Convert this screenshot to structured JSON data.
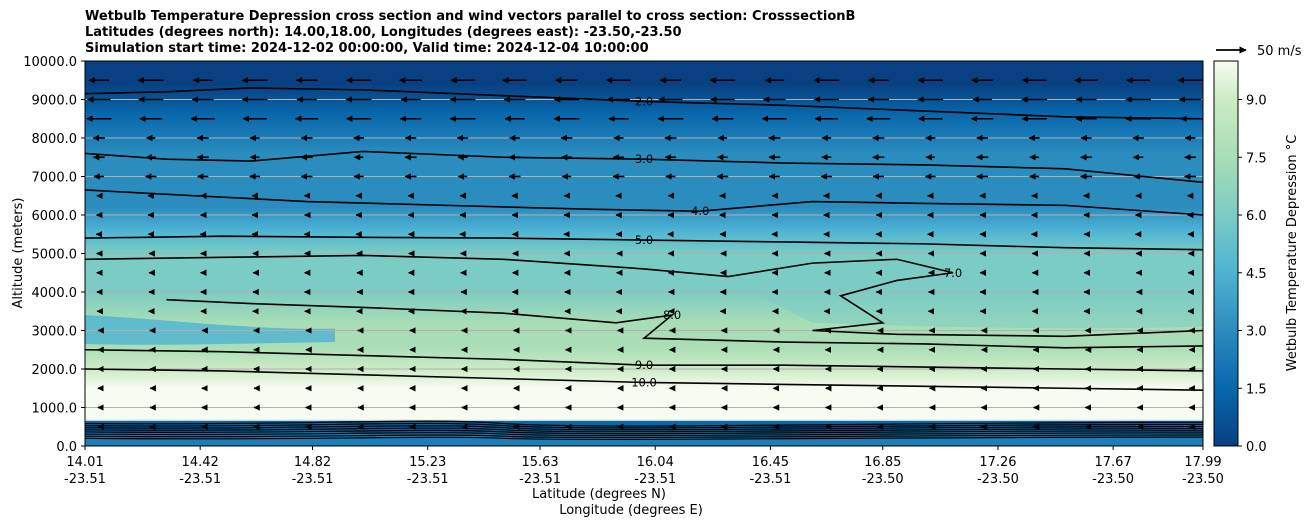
{
  "chart_data": {
    "type": "heatmap",
    "title_lines": [
      "Wetbulb Temperature Depression cross section and wind vectors parallel to cross section: CrosssectionB",
      "Latitudes (degrees north): 14.00,18.00, Longitudes (degrees east): -23.50,-23.50",
      "Simulation start time: 2024-12-02 00:00:00, Valid time: 2024-12-04 10:00:00"
    ],
    "ylabel": "Altitude (meters)",
    "xlabel_lat": "Latitude (degrees N)",
    "xlabel_lon": "Longitude (degrees E)",
    "ylim": [
      0,
      10000
    ],
    "yticks": [
      "0.0",
      "1000.0",
      "2000.0",
      "3000.0",
      "4000.0",
      "5000.0",
      "6000.0",
      "7000.0",
      "8000.0",
      "9000.0",
      "10000.0"
    ],
    "ytick_values": [
      0,
      1000,
      2000,
      3000,
      4000,
      5000,
      6000,
      7000,
      8000,
      9000,
      10000
    ],
    "xlim": [
      14.01,
      17.99
    ],
    "xticks_lat": [
      "14.01",
      "14.42",
      "14.82",
      "15.23",
      "15.63",
      "16.04",
      "16.45",
      "16.85",
      "17.26",
      "17.67",
      "17.99"
    ],
    "xticks_lon": [
      "-23.51",
      "-23.51",
      "-23.51",
      "-23.51",
      "-23.51",
      "-23.51",
      "-23.51",
      "-23.50",
      "-23.50",
      "-23.50",
      "-23.50"
    ],
    "xtick_values": [
      14.01,
      14.42,
      14.82,
      15.23,
      15.63,
      16.04,
      16.45,
      16.85,
      17.26,
      17.67,
      17.99
    ],
    "colorbar": {
      "label": "Wetbulb Temperature Depression °C",
      "range": [
        0,
        10
      ],
      "ticks": [
        "0.0",
        "1.5",
        "3.0",
        "4.5",
        "6.0",
        "7.5",
        "9.0"
      ],
      "tick_values": [
        0,
        1.5,
        3.0,
        4.5,
        6.0,
        7.5,
        9.0
      ],
      "colormap": "GnBu_r"
    },
    "quiver_key": "50 m/s",
    "contour_lines": [
      {
        "level": 2.0,
        "label": "2.0",
        "points": [
          [
            14.01,
            9150
          ],
          [
            14.3,
            9200
          ],
          [
            14.6,
            9300
          ],
          [
            15.0,
            9250
          ],
          [
            15.5,
            9100
          ],
          [
            16.0,
            8950
          ],
          [
            16.5,
            8850
          ],
          [
            17.0,
            8700
          ],
          [
            17.5,
            8550
          ],
          [
            17.99,
            8500
          ]
        ]
      },
      {
        "level": 3.0,
        "label": "3.0",
        "points": [
          [
            14.01,
            7600
          ],
          [
            14.3,
            7450
          ],
          [
            14.6,
            7400
          ],
          [
            15.0,
            7650
          ],
          [
            15.5,
            7500
          ],
          [
            16.0,
            7450
          ],
          [
            16.5,
            7350
          ],
          [
            17.0,
            7300
          ],
          [
            17.5,
            7200
          ],
          [
            17.99,
            6850
          ]
        ]
      },
      {
        "level": 4.0,
        "label": "4.0",
        "points": [
          [
            14.01,
            6650
          ],
          [
            14.4,
            6500
          ],
          [
            14.8,
            6350
          ],
          [
            15.3,
            6250
          ],
          [
            15.8,
            6150
          ],
          [
            16.2,
            6100
          ],
          [
            16.6,
            6350
          ],
          [
            17.0,
            6300
          ],
          [
            17.5,
            6250
          ],
          [
            17.99,
            6000
          ]
        ]
      },
      {
        "level": 5.0,
        "label": "5.0",
        "points": [
          [
            14.01,
            5400
          ],
          [
            14.5,
            5450
          ],
          [
            15.0,
            5420
          ],
          [
            15.5,
            5400
          ],
          [
            16.0,
            5350
          ],
          [
            16.5,
            5300
          ],
          [
            17.0,
            5250
          ],
          [
            17.5,
            5150
          ],
          [
            17.99,
            5100
          ]
        ]
      },
      {
        "level": 7.0,
        "label": "7.0",
        "points": [
          [
            14.01,
            4850
          ],
          [
            14.5,
            4900
          ],
          [
            15.0,
            4950
          ],
          [
            15.5,
            4850
          ],
          [
            16.0,
            4600
          ],
          [
            16.3,
            4400
          ],
          [
            16.6,
            4750
          ],
          [
            16.9,
            4850
          ],
          [
            17.1,
            4500
          ],
          [
            16.9,
            4300
          ],
          [
            16.7,
            3900
          ],
          [
            16.85,
            3200
          ],
          [
            16.6,
            3000
          ],
          [
            16.9,
            2900
          ],
          [
            17.5,
            2850
          ],
          [
            17.99,
            3000
          ]
        ]
      },
      {
        "level": 8.0,
        "label": "8.0",
        "points": [
          [
            14.3,
            3800
          ],
          [
            14.6,
            3700
          ],
          [
            15.0,
            3600
          ],
          [
            15.5,
            3450
          ],
          [
            15.9,
            3200
          ],
          [
            16.1,
            3400
          ],
          [
            16.0,
            2800
          ],
          [
            16.5,
            2700
          ],
          [
            17.0,
            2650
          ],
          [
            17.5,
            2550
          ],
          [
            17.99,
            2600
          ]
        ]
      },
      {
        "level": 9.0,
        "label": "9.0",
        "points": [
          [
            14.01,
            2500
          ],
          [
            14.5,
            2450
          ],
          [
            15.0,
            2350
          ],
          [
            15.5,
            2250
          ],
          [
            16.0,
            2100
          ],
          [
            16.5,
            2100
          ],
          [
            17.0,
            2050
          ],
          [
            17.5,
            2000
          ],
          [
            17.99,
            1950
          ]
        ]
      },
      {
        "level": 10.0,
        "label": "10.0",
        "points": [
          [
            14.01,
            2000
          ],
          [
            14.5,
            1950
          ],
          [
            15.0,
            1850
          ],
          [
            15.5,
            1750
          ],
          [
            16.0,
            1650
          ],
          [
            16.5,
            1600
          ],
          [
            17.0,
            1550
          ],
          [
            17.5,
            1500
          ],
          [
            17.99,
            1450
          ]
        ]
      }
    ],
    "colorbar_fill": [
      {
        "value": 0.0,
        "color": "#084081"
      },
      {
        "value": 1.5,
        "color": "#0868ac"
      },
      {
        "value": 3.0,
        "color": "#2b8cbe"
      },
      {
        "value": 4.5,
        "color": "#4eb3d3"
      },
      {
        "value": 6.0,
        "color": "#7bccc4"
      },
      {
        "value": 7.5,
        "color": "#a8ddb5"
      },
      {
        "value": 9.0,
        "color": "#ccebc5"
      },
      {
        "value": 10.0,
        "color": "#f7fcf0"
      }
    ]
  }
}
